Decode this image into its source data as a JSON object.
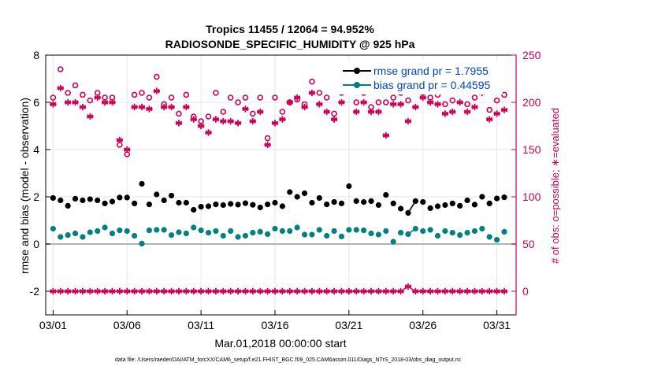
{
  "chart_data": {
    "type": "scatter",
    "title_line1": "Tropics 11455 / 12064 = 94.952%",
    "title_line2": "RADIOSONDE_SPECIFIC_HUMIDITY @ 925 hPa",
    "ylabel_left": "rmse and bias (model - observation)",
    "ylabel_right": "# of obs: o=possible; ∗=evaluated",
    "xlabel": "Mar.01,2018 00:00:00 start",
    "footnote": "data file: /Users/raeder/DAI/ATM_forcXX/CAM6_setup/f.e21.FHIST_BGC.f09_025.CAM6assim.011/Diags_NTrS_2018-03/obs_diag_output.nc",
    "ylim_left": [
      -3,
      8
    ],
    "yticks_left": [
      "-2",
      "0",
      "2",
      "4",
      "6",
      "8"
    ],
    "ylim_right": [
      -25,
      250
    ],
    "yticks_right": [
      "0",
      "50",
      "100",
      "150",
      "200",
      "250"
    ],
    "xlim": [
      0.5,
      32.3
    ],
    "xticks": [
      {
        "value": 1,
        "label": "03/01"
      },
      {
        "value": 6,
        "label": "03/06"
      },
      {
        "value": 11,
        "label": "03/11"
      },
      {
        "value": 16,
        "label": "03/16"
      },
      {
        "value": 21,
        "label": "03/21"
      },
      {
        "value": 26,
        "label": "03/26"
      },
      {
        "value": 31,
        "label": "03/31"
      }
    ],
    "legend": {
      "rmse": "rmse grand pr = 1.7955",
      "bias": "bias grand pr = 0.44595",
      "position": "top-right"
    },
    "colors": {
      "rmse": "#000000",
      "bias": "#008080",
      "obs": "#cc0055",
      "zero_line": "#b3b3b3",
      "grid": "#e6e6e6"
    },
    "grid": true,
    "x": [
      1.0,
      1.5,
      2.0,
      2.5,
      3.0,
      3.5,
      4.0,
      4.5,
      5.0,
      5.5,
      6.0,
      6.5,
      7.0,
      7.5,
      8.0,
      8.5,
      9.0,
      9.5,
      10.0,
      10.5,
      11.0,
      11.5,
      12.0,
      12.5,
      13.0,
      13.5,
      14.0,
      14.5,
      15.0,
      15.5,
      16.0,
      16.5,
      17.0,
      17.5,
      18.0,
      18.5,
      19.0,
      19.5,
      20.0,
      20.5,
      21.0,
      21.5,
      22.0,
      22.5,
      23.0,
      23.5,
      24.0,
      24.5,
      25.0,
      25.5,
      26.0,
      26.5,
      27.0,
      27.5,
      28.0,
      28.5,
      29.0,
      29.5,
      30.0,
      30.5,
      31.0,
      31.5
    ],
    "series": [
      {
        "name": "rmse",
        "marker": "filled-circle",
        "axis": "left",
        "values": [
          1.95,
          1.85,
          1.62,
          1.92,
          1.85,
          1.9,
          1.85,
          1.72,
          1.8,
          1.97,
          1.97,
          1.72,
          2.55,
          1.68,
          2.1,
          1.85,
          2.05,
          1.75,
          1.75,
          1.45,
          1.58,
          1.6,
          1.68,
          1.65,
          1.7,
          1.67,
          1.73,
          1.66,
          1.55,
          1.68,
          1.75,
          1.6,
          2.2,
          2.0,
          2.15,
          1.75,
          1.95,
          1.68,
          1.78,
          1.72,
          2.45,
          1.82,
          1.78,
          1.82,
          1.65,
          2.08,
          1.72,
          1.5,
          1.32,
          1.82,
          1.78,
          1.52,
          1.6,
          1.65,
          1.72,
          1.62,
          1.85,
          1.67,
          2.0,
          1.72,
          1.93,
          1.98
        ]
      },
      {
        "name": "bias",
        "marker": "filled-circle",
        "axis": "left",
        "values": [
          0.65,
          0.3,
          0.38,
          0.45,
          0.3,
          0.5,
          0.55,
          0.7,
          0.45,
          0.58,
          0.55,
          0.35,
          0.02,
          0.58,
          0.6,
          0.6,
          0.38,
          0.5,
          0.45,
          0.7,
          0.58,
          0.48,
          0.55,
          0.35,
          0.55,
          0.3,
          0.35,
          0.48,
          0.52,
          0.42,
          0.65,
          0.55,
          0.55,
          0.7,
          0.4,
          0.4,
          0.6,
          0.35,
          0.55,
          0.32,
          0.6,
          0.6,
          0.58,
          0.45,
          0.4,
          0.55,
          0.1,
          0.48,
          0.42,
          0.65,
          0.55,
          0.6,
          0.35,
          0.55,
          0.48,
          0.38,
          0.48,
          0.55,
          0.65,
          0.3,
          0.18,
          0.52
        ]
      },
      {
        "name": "obs_possible",
        "marker": "open-circle",
        "axis": "right",
        "values": [
          205,
          235,
          210,
          218,
          208,
          202,
          210,
          205,
          205,
          155,
          145,
          208,
          210,
          205,
          227,
          198,
          205,
          188,
          208,
          185,
          180,
          185,
          210,
          190,
          205,
          200,
          205,
          188,
          205,
          162,
          205,
          190,
          200,
          203,
          198,
          222,
          210,
          205,
          188,
          210,
          222,
          200,
          210,
          195,
          200,
          200,
          205,
          210,
          202,
          218,
          210,
          205,
          208,
          198,
          202,
          218,
          198,
          205,
          218,
          192,
          202,
          208
        ]
      },
      {
        "name": "obs_evaluated",
        "marker": "asterisk",
        "axis": "right",
        "values": [
          198,
          215,
          200,
          200,
          195,
          185,
          205,
          200,
          200,
          160,
          150,
          195,
          195,
          193,
          212,
          195,
          195,
          178,
          195,
          182,
          175,
          168,
          182,
          180,
          180,
          178,
          193,
          180,
          190,
          155,
          178,
          182,
          200,
          205,
          195,
          210,
          198,
          190,
          182,
          200,
          215,
          190,
          200,
          190,
          190,
          165,
          198,
          198,
          180,
          195,
          205,
          200,
          198,
          188,
          190,
          200,
          190,
          195,
          210,
          182,
          188,
          192
        ]
      },
      {
        "name": "obs_zero",
        "marker": "asterisk",
        "axis": "right",
        "values": [
          0,
          0,
          0,
          0,
          0,
          0,
          0,
          0,
          0,
          0,
          0,
          0,
          0,
          0,
          0,
          0,
          0,
          0,
          0,
          0,
          0,
          0,
          0,
          0,
          0,
          0,
          0,
          0,
          0,
          0,
          0,
          0,
          0,
          0,
          0,
          0,
          0,
          0,
          0,
          0,
          0,
          0,
          0,
          0,
          0,
          0,
          0,
          0,
          5,
          0,
          0,
          0,
          0,
          0,
          0,
          0,
          0,
          0,
          0,
          0,
          0,
          0
        ]
      }
    ],
    "rmse_connect_indices": [
      [
        48,
        49
      ]
    ]
  }
}
